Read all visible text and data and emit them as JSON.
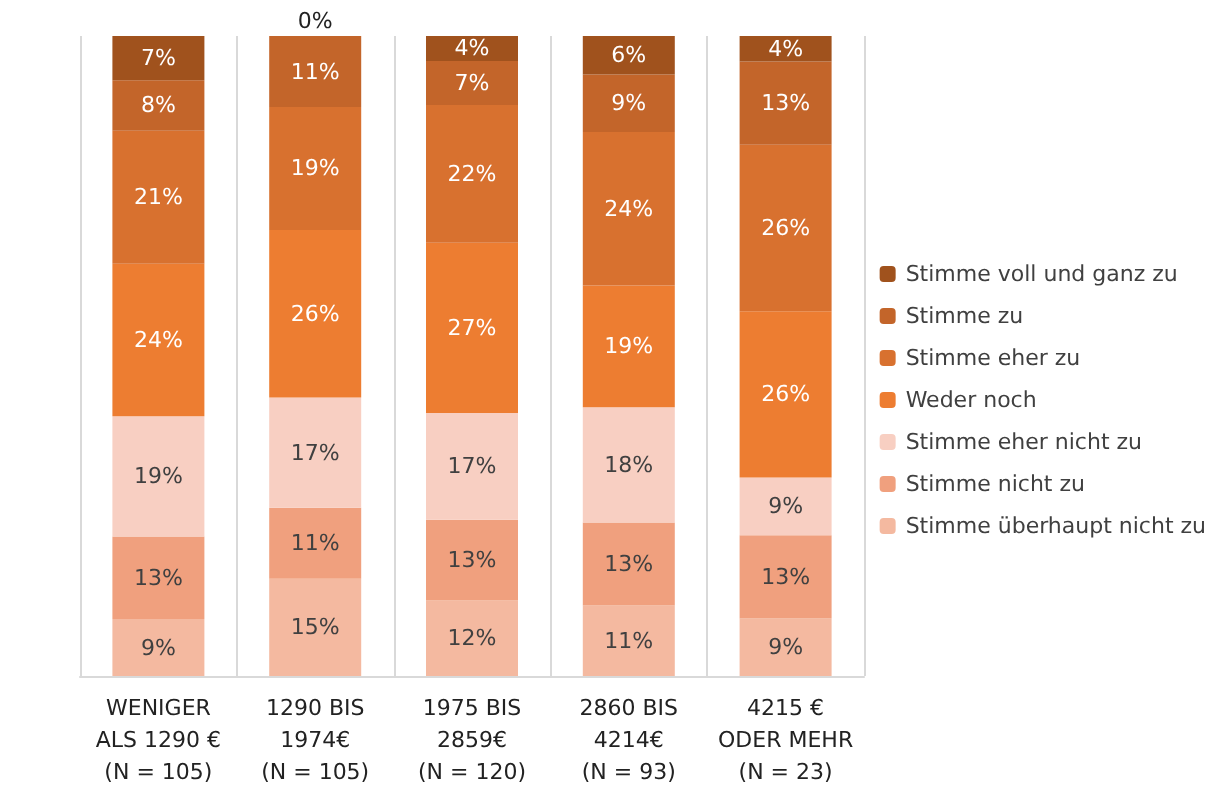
{
  "chart_data": {
    "type": "bar",
    "stacked": true,
    "grid": "x",
    "legend": "right",
    "ylim": [
      0,
      1
    ],
    "categories": [
      "WENIGER\nALS 1290 €\n(N = 105)",
      "1290 BIS\n1974€\n(N = 105)",
      "1975 BIS\n2859€\n(N = 120)",
      "2860 BIS\n4214€\n(N = 93)",
      "4215 €\nODER MEHR\n(N = 23)"
    ],
    "series": [
      {
        "name": "Stimme überhaupt nicht zu",
        "color": "#f4b9a0",
        "values": [
          0.089,
          0.152,
          0.118,
          0.11,
          0.09
        ],
        "value_labels": [
          "9%",
          "15%",
          "12%",
          "11%",
          "9%"
        ]
      },
      {
        "name": "Stimme nicht zu",
        "color": "#f0a07e",
        "values": [
          0.129,
          0.111,
          0.126,
          0.13,
          0.13
        ],
        "value_labels": [
          "13%",
          "11%",
          "13%",
          "13%",
          "13%"
        ]
      },
      {
        "name": "Stimme eher nicht zu",
        "color": "#f8cfc2",
        "values": [
          0.188,
          0.172,
          0.167,
          0.18,
          0.09
        ],
        "value_labels": [
          "19%",
          "17%",
          "17%",
          "18%",
          "9%"
        ]
      },
      {
        "name": "Weder noch",
        "color": "#ed7d31",
        "values": [
          0.238,
          0.262,
          0.266,
          0.19,
          0.26
        ],
        "value_labels": [
          "24%",
          "26%",
          "27%",
          "19%",
          "26%"
        ]
      },
      {
        "name": "Stimme eher zu",
        "color": "#d8712f",
        "values": [
          0.208,
          0.192,
          0.215,
          0.24,
          0.26
        ],
        "value_labels": [
          "21%",
          "19%",
          "22%",
          "24%",
          "26%"
        ]
      },
      {
        "name": "Stimme zu",
        "color": "#c3652a",
        "values": [
          0.079,
          0.111,
          0.069,
          0.09,
          0.13
        ],
        "value_labels": [
          "8%",
          "11%",
          "7%",
          "9%",
          "13%"
        ]
      },
      {
        "name": "Stimme voll und ganz zu",
        "color": "#a0521d",
        "values": [
          0.069,
          0,
          0.039,
          0.06,
          0.04
        ],
        "value_labels": [
          "7%",
          "0%",
          "4%",
          "6%",
          "4%"
        ]
      }
    ]
  }
}
